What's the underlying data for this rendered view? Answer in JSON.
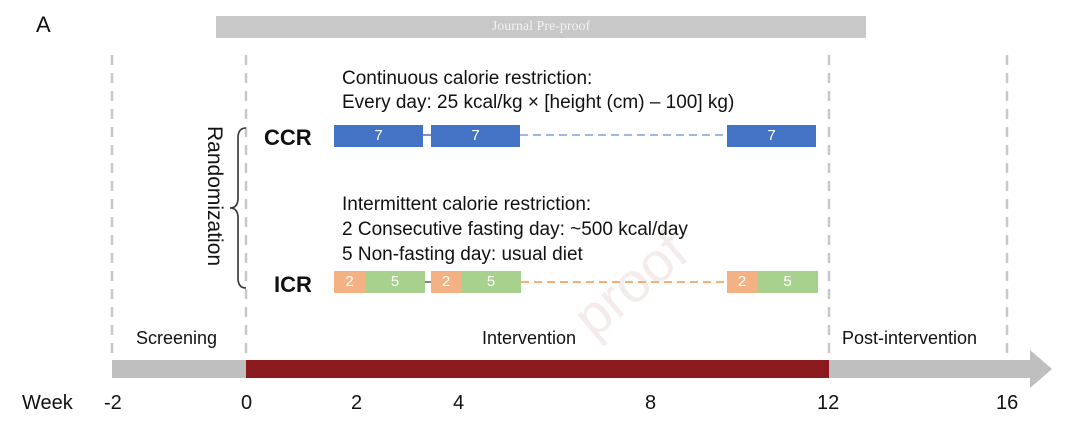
{
  "panel_label": "A",
  "banner_text": "Journal Pre-proof",
  "watermark_text": "proof",
  "ccr": {
    "arm_label": "CCR",
    "desc_line1": "Continuous calorie restriction:",
    "desc_line2": "Every day: 25 kcal/kg × [height (cm) – 100] kg)",
    "segments": [
      "7",
      "7",
      "7"
    ]
  },
  "icr": {
    "arm_label": "ICR",
    "desc_line1": "Intermittent calorie restriction:",
    "desc_line2": "2 Consecutive fasting day: ~500 kcal/day",
    "desc_line3": "5 Non-fasting day: usual diet",
    "segments": [
      {
        "fast": "2",
        "nonfast": "5"
      },
      {
        "fast": "2",
        "nonfast": "5"
      },
      {
        "fast": "2",
        "nonfast": "5"
      }
    ]
  },
  "randomization_label": "Randomization",
  "phases": {
    "screening": "Screening",
    "intervention": "Intervention",
    "post": "Post-intervention"
  },
  "timeline": {
    "axis_label": "Week",
    "ticks": [
      "-2",
      "0",
      "2",
      "4",
      "8",
      "12",
      "16"
    ]
  },
  "colors": {
    "ccr": "#4472c4",
    "ccr_dash": "#7da0d8",
    "icr_fast": "#f4b183",
    "icr_nonfast": "#a9d18e",
    "icr_dash": "#f4a460",
    "intervention_bar": "#8b1a1f",
    "timeline_gray": "#bfbfbf"
  }
}
